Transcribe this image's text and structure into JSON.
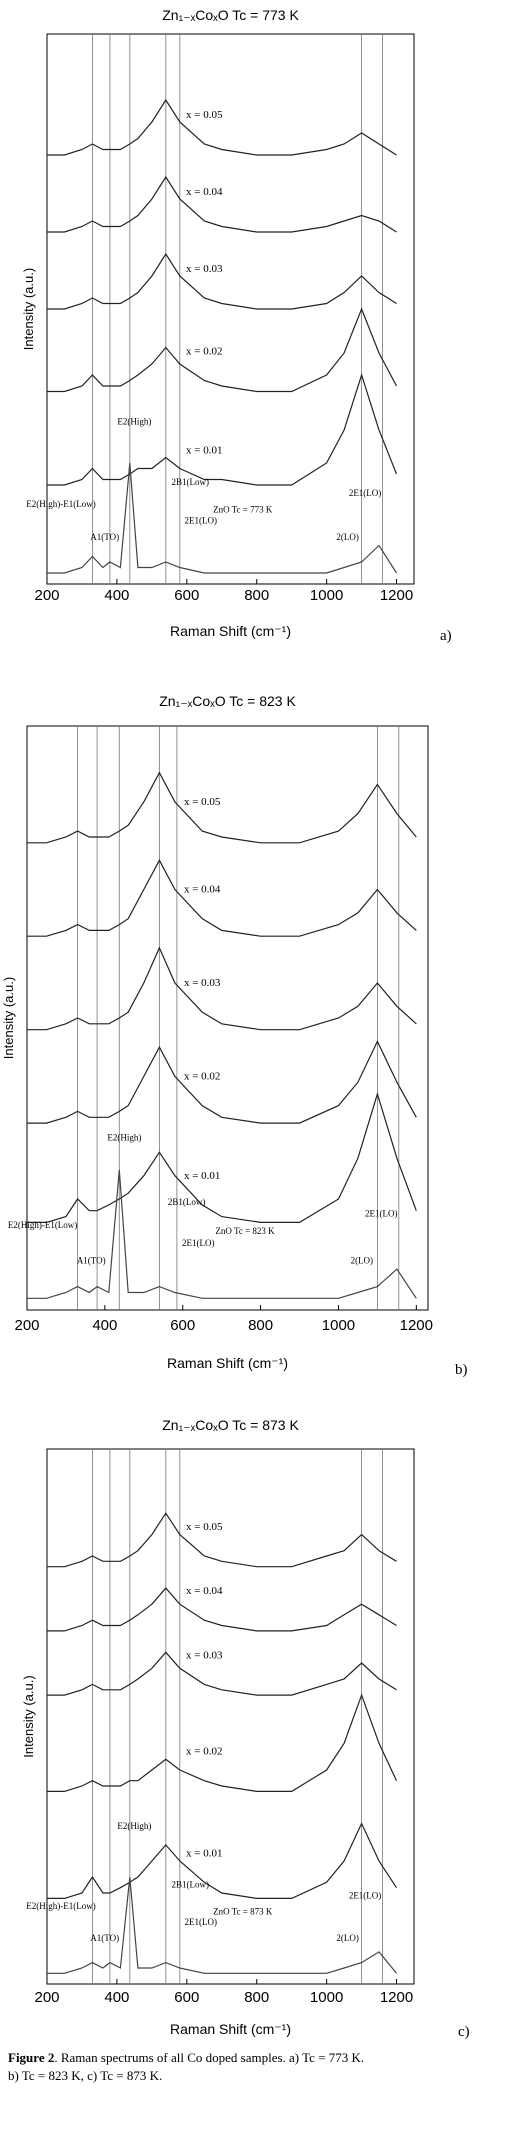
{
  "chart_data": [
    {
      "type": "line",
      "title": "Zn₁₋ₓCoₓO  Tc = 773 K",
      "x_label": "Raman Shift (cm⁻¹)",
      "y_label": "Intensity (a.u.)",
      "panel_label": "a)",
      "xlim": [
        200,
        1250
      ],
      "xticks": [
        200,
        400,
        600,
        800,
        1000,
        1200
      ],
      "ylim": [
        0,
        100
      ],
      "x": [
        200,
        250,
        300,
        330,
        360,
        380,
        410,
        437,
        460,
        500,
        540,
        580,
        650,
        700,
        800,
        900,
        1000,
        1050,
        1100,
        1150,
        1200
      ],
      "vlines": [
        330,
        380,
        437,
        540,
        580,
        1100,
        1160
      ],
      "annotations": [
        "E2(High)-E1(Low)",
        "A1(TO)",
        "E2(High)",
        "2B1(Low)",
        "2E1(LO)",
        "ZnO  Tc = 773 K",
        "2E1(LO)",
        "2(LO)"
      ],
      "series": [
        {
          "name": "x = 0.05",
          "color": "#222",
          "values": [
            78,
            78,
            79,
            80,
            79,
            79,
            79,
            80,
            81,
            84,
            88,
            84,
            80,
            79,
            78,
            78,
            79,
            80,
            82,
            80,
            78
          ]
        },
        {
          "name": "x = 0.04",
          "color": "#222",
          "values": [
            64,
            64,
            65,
            66,
            65,
            65,
            65,
            66,
            67,
            70,
            74,
            70,
            66,
            65,
            64,
            64,
            65,
            66,
            67,
            66,
            64
          ]
        },
        {
          "name": "x = 0.03",
          "color": "#222",
          "values": [
            50,
            50,
            51,
            52,
            51,
            51,
            51,
            52,
            53,
            56,
            60,
            56,
            52,
            51,
            50,
            50,
            51,
            53,
            56,
            53,
            51
          ]
        },
        {
          "name": "x = 0.02",
          "color": "#222",
          "values": [
            35,
            35,
            36,
            38,
            36,
            36,
            36,
            37,
            38,
            40,
            43,
            40,
            37,
            36,
            35,
            35,
            38,
            42,
            50,
            42,
            36
          ]
        },
        {
          "name": "x = 0.01",
          "color": "#222",
          "values": [
            18,
            18,
            19,
            21,
            19,
            19,
            19,
            20,
            21,
            21,
            23,
            21,
            19,
            19,
            18,
            18,
            22,
            28,
            38,
            28,
            20
          ]
        },
        {
          "name": "ZnO",
          "color": "#444",
          "values": [
            2,
            2,
            3,
            5,
            3,
            4,
            3,
            22,
            3,
            3,
            4,
            3,
            2,
            2,
            2,
            2,
            2,
            3,
            4,
            7,
            2
          ]
        }
      ]
    },
    {
      "type": "line",
      "title": "Zn₁₋ₓCoₓO  Tc = 823 K",
      "x_label": "Raman Shift (cm⁻¹)",
      "y_label": "Intensity (a.u.)",
      "panel_label": "b)",
      "xlim": [
        200,
        1230
      ],
      "xticks": [
        200,
        400,
        600,
        800,
        1000,
        1200
      ],
      "ylim": [
        0,
        100
      ],
      "x": [
        200,
        250,
        300,
        330,
        360,
        380,
        410,
        437,
        460,
        500,
        540,
        580,
        650,
        700,
        800,
        900,
        1000,
        1050,
        1100,
        1150,
        1200
      ],
      "vlines": [
        330,
        380,
        437,
        540,
        585,
        1100,
        1155
      ],
      "annotations": [
        "E2(High)-E1(Low)",
        "A1(TO)",
        "E2(High)",
        "2B1(Low)",
        "2E1(LO)",
        "ZnO  Tc = 823 K",
        "2E1(LO)",
        "2(LO)"
      ],
      "series": [
        {
          "name": "x = 0.05",
          "color": "#222",
          "values": [
            80,
            80,
            81,
            82,
            81,
            81,
            81,
            82,
            83,
            87,
            92,
            87,
            82,
            81,
            80,
            80,
            82,
            85,
            90,
            85,
            81
          ]
        },
        {
          "name": "x = 0.04",
          "color": "#222",
          "values": [
            64,
            64,
            65,
            66,
            65,
            65,
            65,
            66,
            67,
            72,
            77,
            72,
            67,
            65,
            64,
            64,
            66,
            68,
            72,
            68,
            65
          ]
        },
        {
          "name": "x = 0.03",
          "color": "#222",
          "values": [
            48,
            48,
            49,
            50,
            49,
            49,
            49,
            50,
            51,
            56,
            62,
            56,
            51,
            49,
            48,
            48,
            50,
            52,
            56,
            52,
            49
          ]
        },
        {
          "name": "x = 0.02",
          "color": "#222",
          "values": [
            32,
            32,
            33,
            34,
            33,
            33,
            33,
            34,
            35,
            40,
            45,
            40,
            35,
            33,
            32,
            32,
            35,
            39,
            46,
            39,
            33
          ]
        },
        {
          "name": "x = 0.01",
          "color": "#222",
          "values": [
            15,
            15,
            16,
            19,
            17,
            17,
            18,
            19,
            20,
            23,
            27,
            23,
            18,
            16,
            15,
            15,
            19,
            26,
            37,
            26,
            17
          ]
        },
        {
          "name": "ZnO",
          "color": "#444",
          "values": [
            2,
            2,
            3,
            4,
            3,
            4,
            3,
            24,
            3,
            3,
            4,
            3,
            2,
            2,
            2,
            2,
            2,
            3,
            4,
            7,
            2
          ]
        }
      ]
    },
    {
      "type": "line",
      "title": "Zn₁₋ₓCoₓO  Tc = 873 K",
      "x_label": "Raman Shift (cm⁻¹)",
      "y_label": "Intensity (a.u.)",
      "panel_label": "c)",
      "xlim": [
        200,
        1250
      ],
      "xticks": [
        200,
        400,
        600,
        800,
        1000,
        1200
      ],
      "ylim": [
        0,
        100
      ],
      "x": [
        200,
        250,
        300,
        330,
        360,
        380,
        410,
        437,
        460,
        500,
        540,
        580,
        650,
        700,
        800,
        900,
        1000,
        1050,
        1100,
        1150,
        1200
      ],
      "vlines": [
        330,
        380,
        437,
        540,
        580,
        1100,
        1160
      ],
      "annotations": [
        "E2(High)-E1(Low)",
        "A1(TO)",
        "E2(High)",
        "2B1(Low)",
        "2E1(LO)",
        "ZnO  Tc = 873 K",
        "2E1(LO)",
        "2(LO)"
      ],
      "series": [
        {
          "name": "x = 0.05",
          "color": "#222",
          "values": [
            78,
            78,
            79,
            80,
            79,
            79,
            79,
            80,
            81,
            84,
            88,
            84,
            80,
            79,
            78,
            78,
            80,
            81,
            84,
            81,
            79
          ]
        },
        {
          "name": "x = 0.04",
          "color": "#222",
          "values": [
            66,
            66,
            67,
            68,
            67,
            67,
            67,
            68,
            69,
            71,
            74,
            71,
            68,
            67,
            66,
            66,
            67,
            69,
            71,
            69,
            67
          ]
        },
        {
          "name": "x = 0.03",
          "color": "#222",
          "values": [
            54,
            54,
            55,
            56,
            55,
            55,
            55,
            56,
            57,
            59,
            62,
            59,
            56,
            55,
            54,
            54,
            56,
            57,
            60,
            57,
            55
          ]
        },
        {
          "name": "x = 0.02",
          "color": "#222",
          "values": [
            36,
            36,
            37,
            38,
            37,
            37,
            37,
            38,
            38,
            40,
            42,
            40,
            38,
            37,
            36,
            36,
            40,
            45,
            54,
            45,
            38
          ]
        },
        {
          "name": "x = 0.01",
          "color": "#222",
          "values": [
            16,
            16,
            17,
            20,
            17,
            17,
            18,
            19,
            20,
            23,
            26,
            23,
            19,
            17,
            16,
            16,
            19,
            23,
            30,
            23,
            18
          ]
        },
        {
          "name": "ZnO",
          "color": "#444",
          "values": [
            2,
            2,
            3,
            4,
            3,
            4,
            3,
            20,
            3,
            3,
            4,
            3,
            2,
            2,
            2,
            2,
            2,
            3,
            4,
            6,
            2
          ]
        }
      ]
    }
  ],
  "caption": {
    "label": "Figure 2",
    "line1": ". Raman spectrums of all Co doped samples.  a) Tc = 773 K.",
    "line2": "b) Tc = 823 K, c) Tc = 873 K."
  }
}
